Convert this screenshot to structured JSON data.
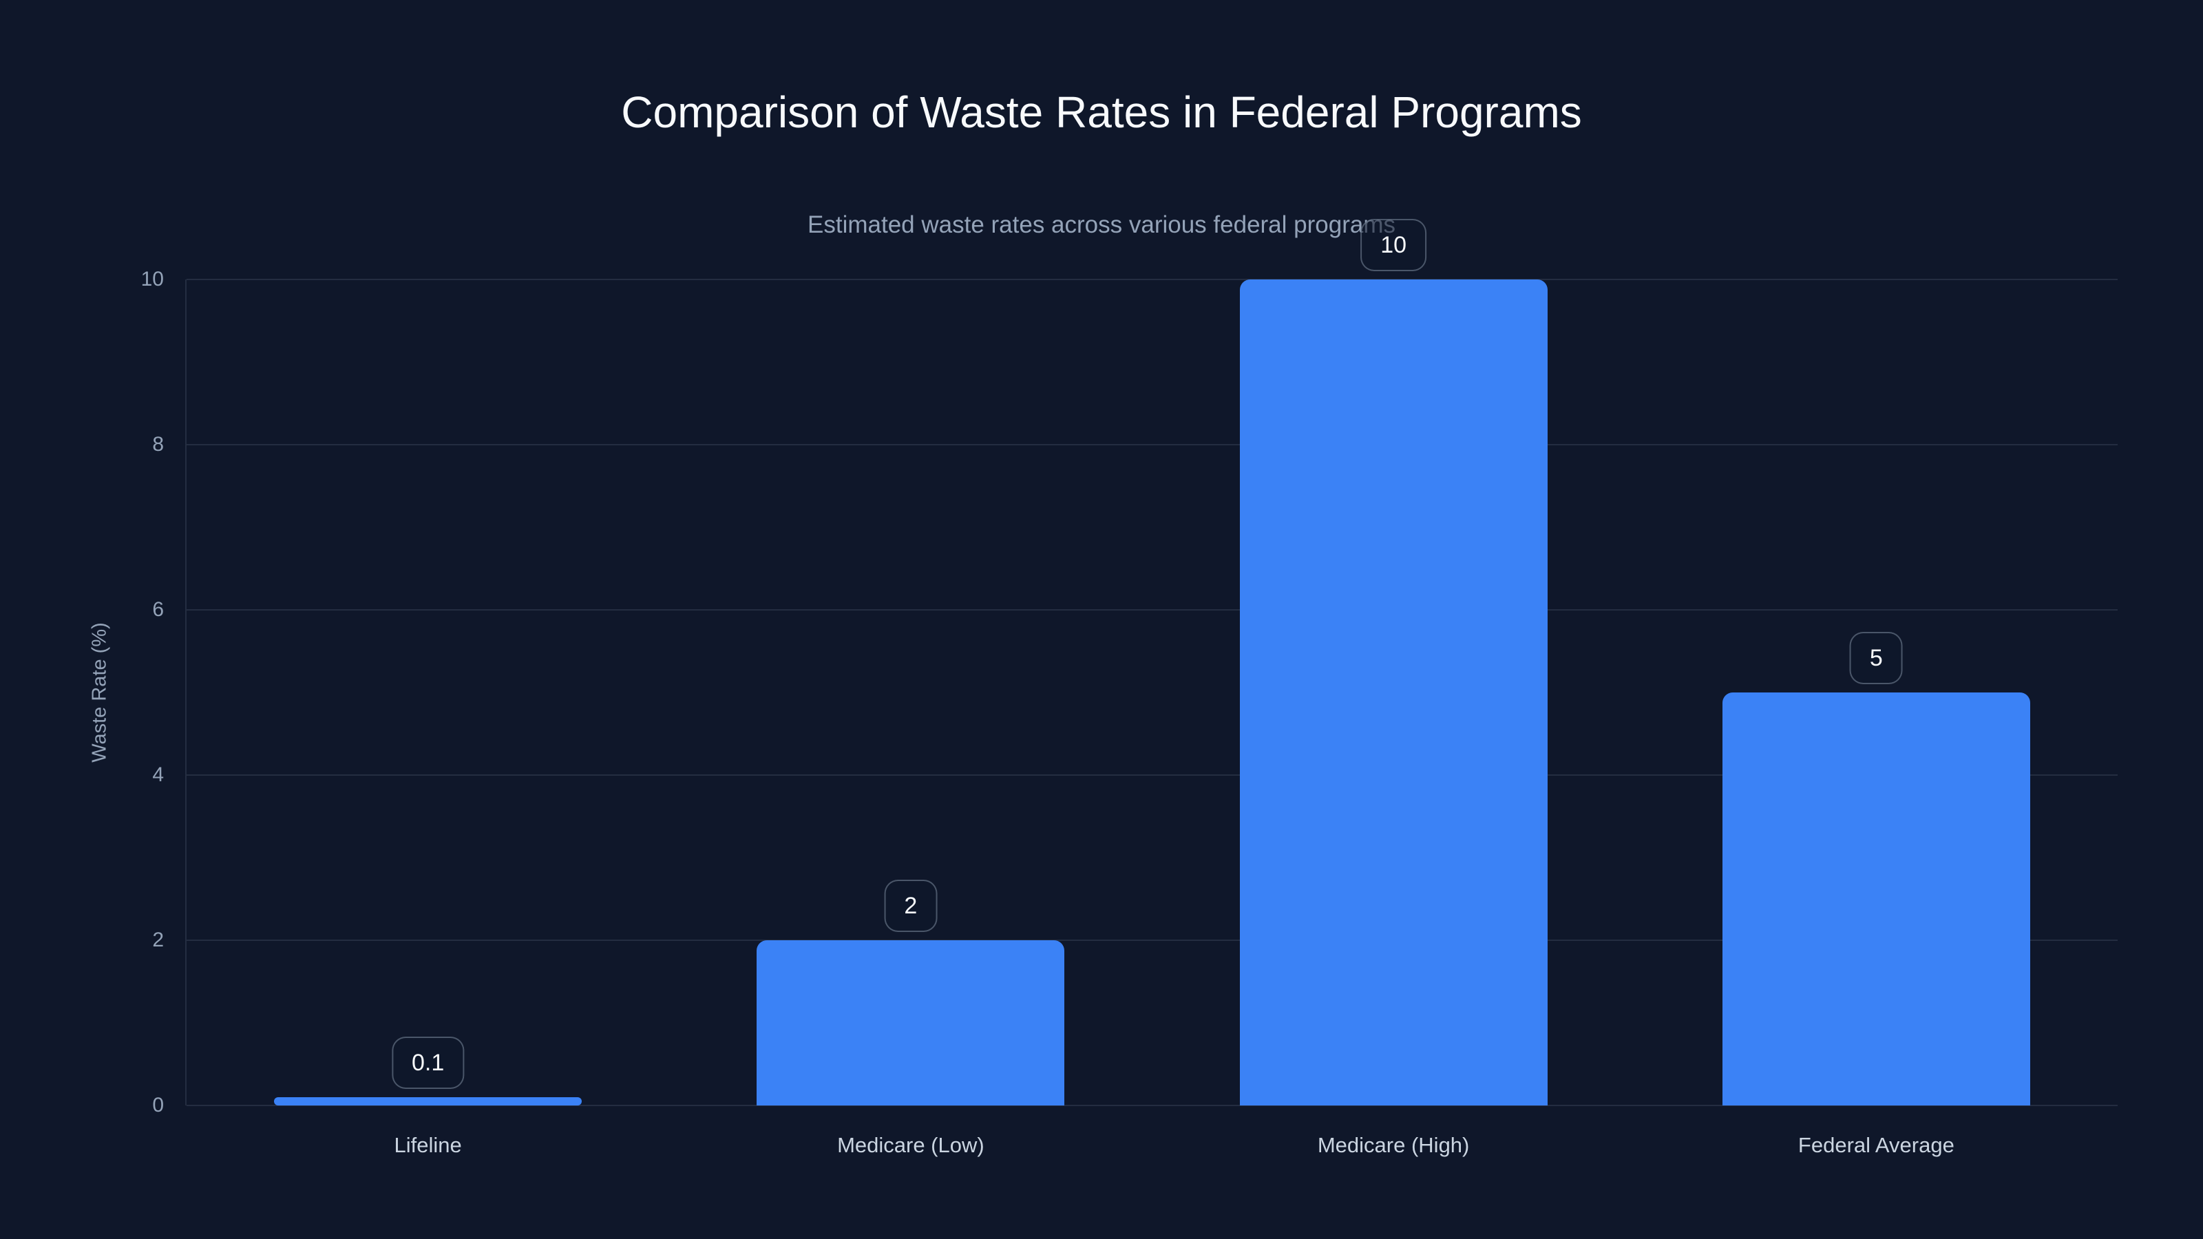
{
  "chart_data": {
    "type": "bar",
    "title": "Comparison of Waste Rates in Federal Programs",
    "subtitle": "Estimated waste rates across various federal programs",
    "categories": [
      "Lifeline",
      "Medicare (Low)",
      "Medicare (High)",
      "Federal Average"
    ],
    "values": [
      0.1,
      2,
      10,
      5
    ],
    "data_labels": [
      "0.1",
      "2",
      "10",
      "5"
    ],
    "xlabel": "",
    "ylabel": "Waste Rate (%)",
    "ylim": [
      0,
      10
    ],
    "yticks": [
      "0",
      "2",
      "4",
      "6",
      "8",
      "10"
    ],
    "grid": true,
    "legend": false
  },
  "theme": {
    "background": "#0f172a",
    "bar_color": "#3b82f6",
    "title_color": "#f8fafc",
    "subtitle_color": "#94a3b8",
    "tick_color": "#94a3b8",
    "category_color": "#cbd5e1",
    "gridline_color": "rgba(148,163,184,0.16)",
    "badge_text_color": "#f8fafc",
    "badge_border_color": "rgba(148,163,184,0.45)"
  }
}
